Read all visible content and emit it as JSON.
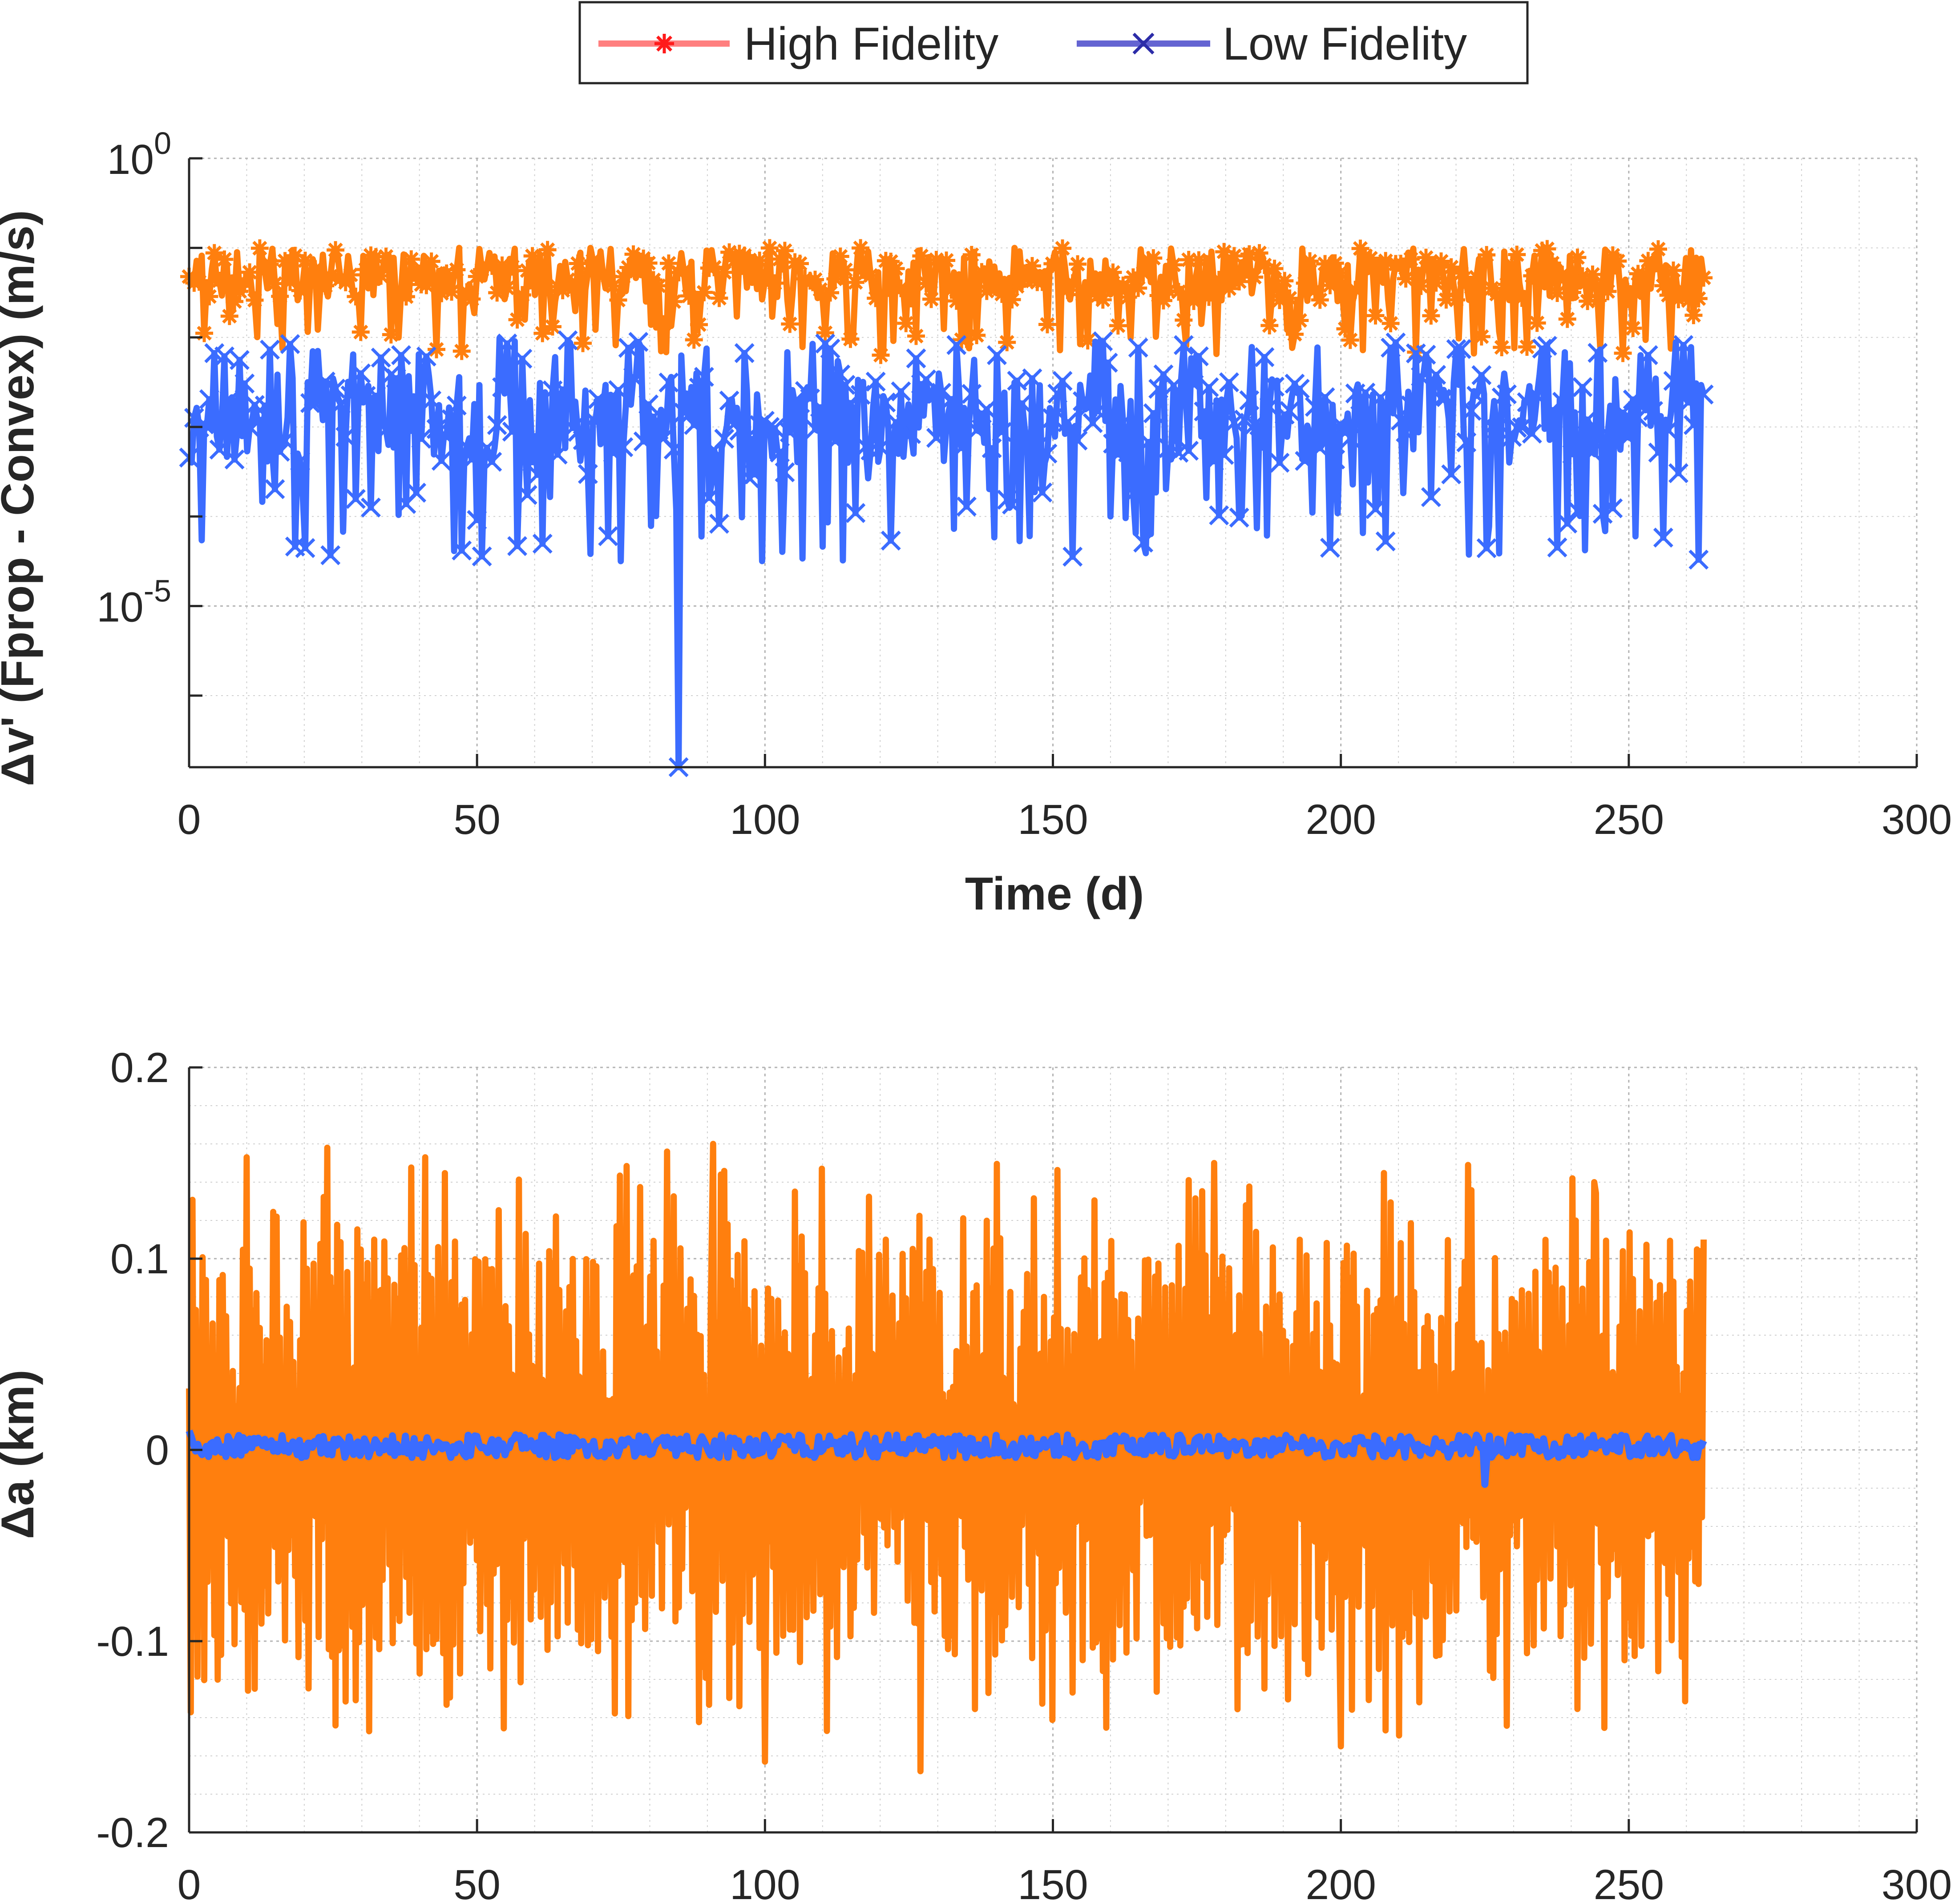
{
  "figure": {
    "legend": {
      "position": "top-center",
      "entries": [
        {
          "label": "High Fidelity",
          "marker": "asterisk",
          "line_color": "#ff7f7f",
          "marker_color": "#ff1a1a"
        },
        {
          "label": "Low Fidelity",
          "marker": "x",
          "line_color": "#6464d2",
          "marker_color": "#2c2ca8"
        }
      ]
    }
  },
  "chart_data": [
    {
      "type": "line",
      "name": "top-panel",
      "title": "",
      "xlabel": "Time (d)",
      "ylabel": "Δv' (Fprop - Convex) (m/s)",
      "xscale": "linear",
      "yscale": "log",
      "xlim": [
        0,
        300
      ],
      "ylim_log10": [
        -6.8,
        0
      ],
      "grid": true,
      "minor_grid": true,
      "x_ticks": [
        "0",
        "50",
        "100",
        "150",
        "200",
        "250",
        "300"
      ],
      "y_ticks": [
        {
          "base": "10",
          "exponent": "0",
          "log10": 0
        },
        {
          "base": "10",
          "exponent": "-5",
          "log10": -5
        }
      ],
      "series": [
        {
          "name": "High Fidelity",
          "color": "#ff7f0e",
          "marker": "asterisk",
          "x_range": [
            0,
            263
          ],
          "typical_log10_range": [
            -2.2,
            -0.9
          ],
          "description_values_log10": [
            -1.3,
            -1.0,
            -1.6,
            -2.0,
            -1.1,
            -1.4,
            -0.95,
            -2.1,
            -1.2,
            -1.5,
            -1.0,
            -1.8,
            -1.3,
            -1.1,
            -2.2,
            -1.4
          ]
        },
        {
          "name": "Low Fidelity",
          "color": "#3b6cff",
          "marker": "x",
          "x_range": [
            0,
            263
          ],
          "typical_log10_range": [
            -4.5,
            -2.0
          ],
          "min_point": {
            "x": 85,
            "log10": -6.8
          },
          "description_values_log10": [
            -2.6,
            -3.0,
            -2.3,
            -3.5,
            -2.8,
            -4.0,
            -2.5,
            -3.2,
            -2.2,
            -4.3,
            -2.7,
            -3.8,
            -2.4,
            -3.1,
            -4.5,
            -2.9
          ]
        }
      ]
    },
    {
      "type": "line",
      "name": "bottom-panel",
      "title": "",
      "xlabel": "",
      "ylabel": "Δa (km)",
      "xscale": "linear",
      "yscale": "linear",
      "xlim": [
        0,
        300
      ],
      "ylim": [
        -0.2,
        0.2
      ],
      "grid": true,
      "minor_grid": true,
      "x_ticks": [
        "0",
        "50",
        "100",
        "150",
        "200",
        "250",
        "300"
      ],
      "y_ticks": [
        "0.2",
        "0.1",
        "0",
        "-0.1",
        "-0.2"
      ],
      "series": [
        {
          "name": "High Fidelity",
          "color": "#ff7f0e",
          "x_range": [
            0,
            263
          ],
          "peak_max": 0.16,
          "peak_min": -0.168,
          "sample_peaks": [
            {
              "x": 10,
              "y": 0.153
            },
            {
              "x": 24,
              "y": 0.158
            },
            {
              "x": 41,
              "y": 0.153
            },
            {
              "x": 91,
              "y": 0.16
            },
            {
              "x": 83,
              "y": 0.156
            },
            {
              "x": 127,
              "y": -0.168
            },
            {
              "x": 100,
              "y": -0.163
            },
            {
              "x": 178,
              "y": 0.15
            },
            {
              "x": 200,
              "y": -0.155
            },
            {
              "x": 244,
              "y": 0.14
            },
            {
              "x": 263,
              "y": 0.11
            }
          ]
        },
        {
          "name": "Low Fidelity",
          "color": "#3b6cff",
          "x_range": [
            0,
            263
          ],
          "typical_range": [
            -0.004,
            0.008
          ],
          "min_point": {
            "x": 225,
            "y": -0.018
          },
          "max_point": {
            "x": 0,
            "y": 0.01
          }
        }
      ]
    }
  ]
}
